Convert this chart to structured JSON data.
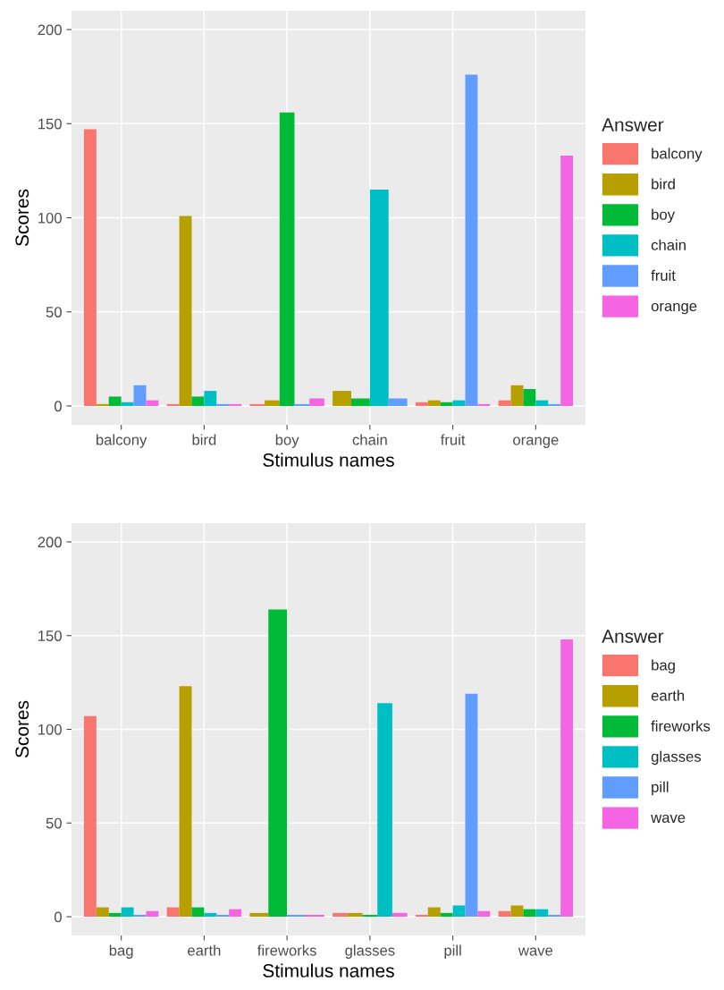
{
  "chart_data": [
    {
      "type": "bar",
      "xlabel": "Stimulus names",
      "ylabel": "Scores",
      "legend_title": "Answer",
      "legend": "right",
      "grid": true,
      "categories": [
        "balcony",
        "bird",
        "boy",
        "chain",
        "fruit",
        "orange"
      ],
      "ylim": [
        -10,
        210
      ],
      "yticks": [
        0,
        50,
        100,
        150,
        200
      ],
      "series": [
        {
          "name": "balcony",
          "color": "#f8766d",
          "values": [
            147,
            1,
            1,
            null,
            2,
            3
          ]
        },
        {
          "name": "bird",
          "color": "#b79f00",
          "values": [
            1,
            101,
            3,
            8,
            3,
            11
          ]
        },
        {
          "name": "boy",
          "color": "#00ba38",
          "values": [
            5,
            5,
            156,
            4,
            2,
            9
          ]
        },
        {
          "name": "chain",
          "color": "#00bfc4",
          "values": [
            2,
            8,
            null,
            115,
            3,
            3
          ]
        },
        {
          "name": "fruit",
          "color": "#619cff",
          "values": [
            11,
            1,
            1,
            4,
            176,
            1
          ]
        },
        {
          "name": "orange",
          "color": "#f564e3",
          "values": [
            3,
            1,
            4,
            null,
            1,
            133
          ]
        }
      ]
    },
    {
      "type": "bar",
      "xlabel": "Stimulus names",
      "ylabel": "Scores",
      "legend_title": "Answer",
      "legend": "right",
      "grid": true,
      "categories": [
        "bag",
        "earth",
        "fireworks",
        "glasses",
        "pill",
        "wave"
      ],
      "ylim": [
        -10,
        210
      ],
      "yticks": [
        0,
        50,
        100,
        150,
        200
      ],
      "series": [
        {
          "name": "bag",
          "color": "#f8766d",
          "values": [
            107,
            5,
            null,
            2,
            1,
            3
          ]
        },
        {
          "name": "earth",
          "color": "#b79f00",
          "values": [
            5,
            123,
            2,
            2,
            5,
            6
          ]
        },
        {
          "name": "fireworks",
          "color": "#00ba38",
          "values": [
            2,
            5,
            164,
            1,
            2,
            4
          ]
        },
        {
          "name": "glasses",
          "color": "#00bfc4",
          "values": [
            5,
            2,
            null,
            114,
            6,
            4
          ]
        },
        {
          "name": "pill",
          "color": "#619cff",
          "values": [
            1,
            1,
            1,
            null,
            119,
            1
          ]
        },
        {
          "name": "wave",
          "color": "#f564e3",
          "values": [
            3,
            4,
            1,
            2,
            3,
            148
          ]
        }
      ]
    }
  ]
}
